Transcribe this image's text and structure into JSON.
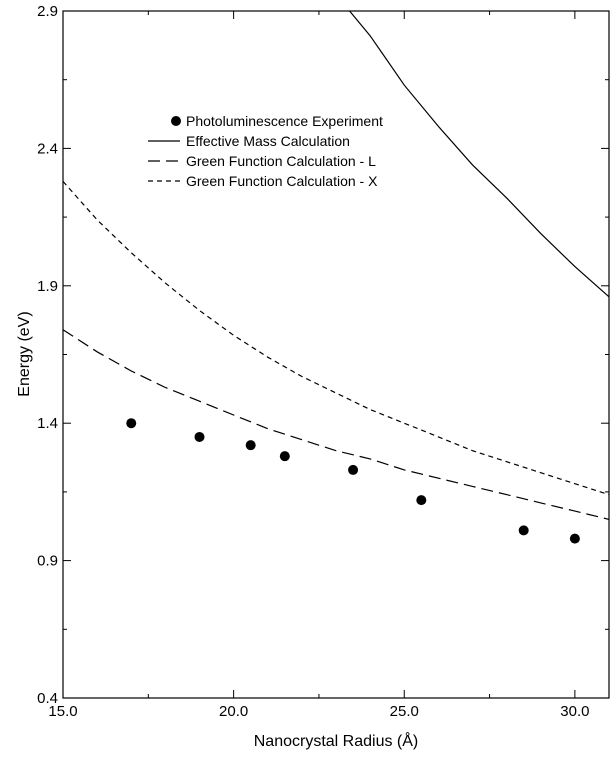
{
  "chart_data": {
    "type": "line",
    "xlabel": "Nanocrystal Radius (Å)",
    "ylabel": "Energy (eV)",
    "xlim": [
      15.0,
      31.0
    ],
    "ylim": [
      0.4,
      2.9
    ],
    "xticks": [
      "15.0",
      "20.0",
      "25.0",
      "30.0"
    ],
    "xtick_values": [
      15,
      20,
      25,
      30
    ],
    "yticks": [
      "0.4",
      "0.9",
      "1.4",
      "1.9",
      "2.4",
      "2.9"
    ],
    "ytick_values": [
      0.4,
      0.9,
      1.4,
      1.9,
      2.4,
      2.9
    ],
    "grid": false,
    "legend_position": "upper-middle",
    "series": [
      {
        "name": "Photoluminescence Experiment",
        "style": "markers",
        "x": [
          17.0,
          19.0,
          20.5,
          21.5,
          23.5,
          25.5,
          28.5,
          30.0
        ],
        "y": [
          1.4,
          1.35,
          1.32,
          1.28,
          1.23,
          1.12,
          1.01,
          0.98
        ]
      },
      {
        "name": "Effective Mass Calculation",
        "style": "solid",
        "x": [
          23.4,
          24.0,
          25.0,
          26.0,
          27.0,
          28.0,
          29.0,
          30.0,
          31.0
        ],
        "y": [
          2.9,
          2.81,
          2.63,
          2.48,
          2.34,
          2.22,
          2.09,
          1.97,
          1.86
        ]
      },
      {
        "name": "Green Function Calculation - L",
        "style": "long-dash",
        "x": [
          15.0,
          16.0,
          17.0,
          18.0,
          19.0,
          20.0,
          21.0,
          22.0,
          23.0,
          24.0,
          25.0,
          26.0,
          27.0,
          28.0,
          29.0,
          30.0,
          31.0
        ],
        "y": [
          1.74,
          1.66,
          1.59,
          1.53,
          1.48,
          1.43,
          1.38,
          1.34,
          1.3,
          1.27,
          1.23,
          1.2,
          1.17,
          1.14,
          1.11,
          1.08,
          1.05
        ]
      },
      {
        "name": "Green Function Calculation - X",
        "style": "short-dash",
        "x": [
          15.0,
          16.0,
          17.0,
          18.0,
          19.0,
          20.0,
          21.0,
          22.0,
          23.0,
          24.0,
          25.0,
          26.0,
          27.0,
          28.0,
          29.0,
          30.0,
          31.0
        ],
        "y": [
          2.28,
          2.14,
          2.02,
          1.91,
          1.81,
          1.72,
          1.64,
          1.57,
          1.51,
          1.45,
          1.4,
          1.35,
          1.3,
          1.26,
          1.22,
          1.18,
          1.14
        ]
      }
    ]
  }
}
